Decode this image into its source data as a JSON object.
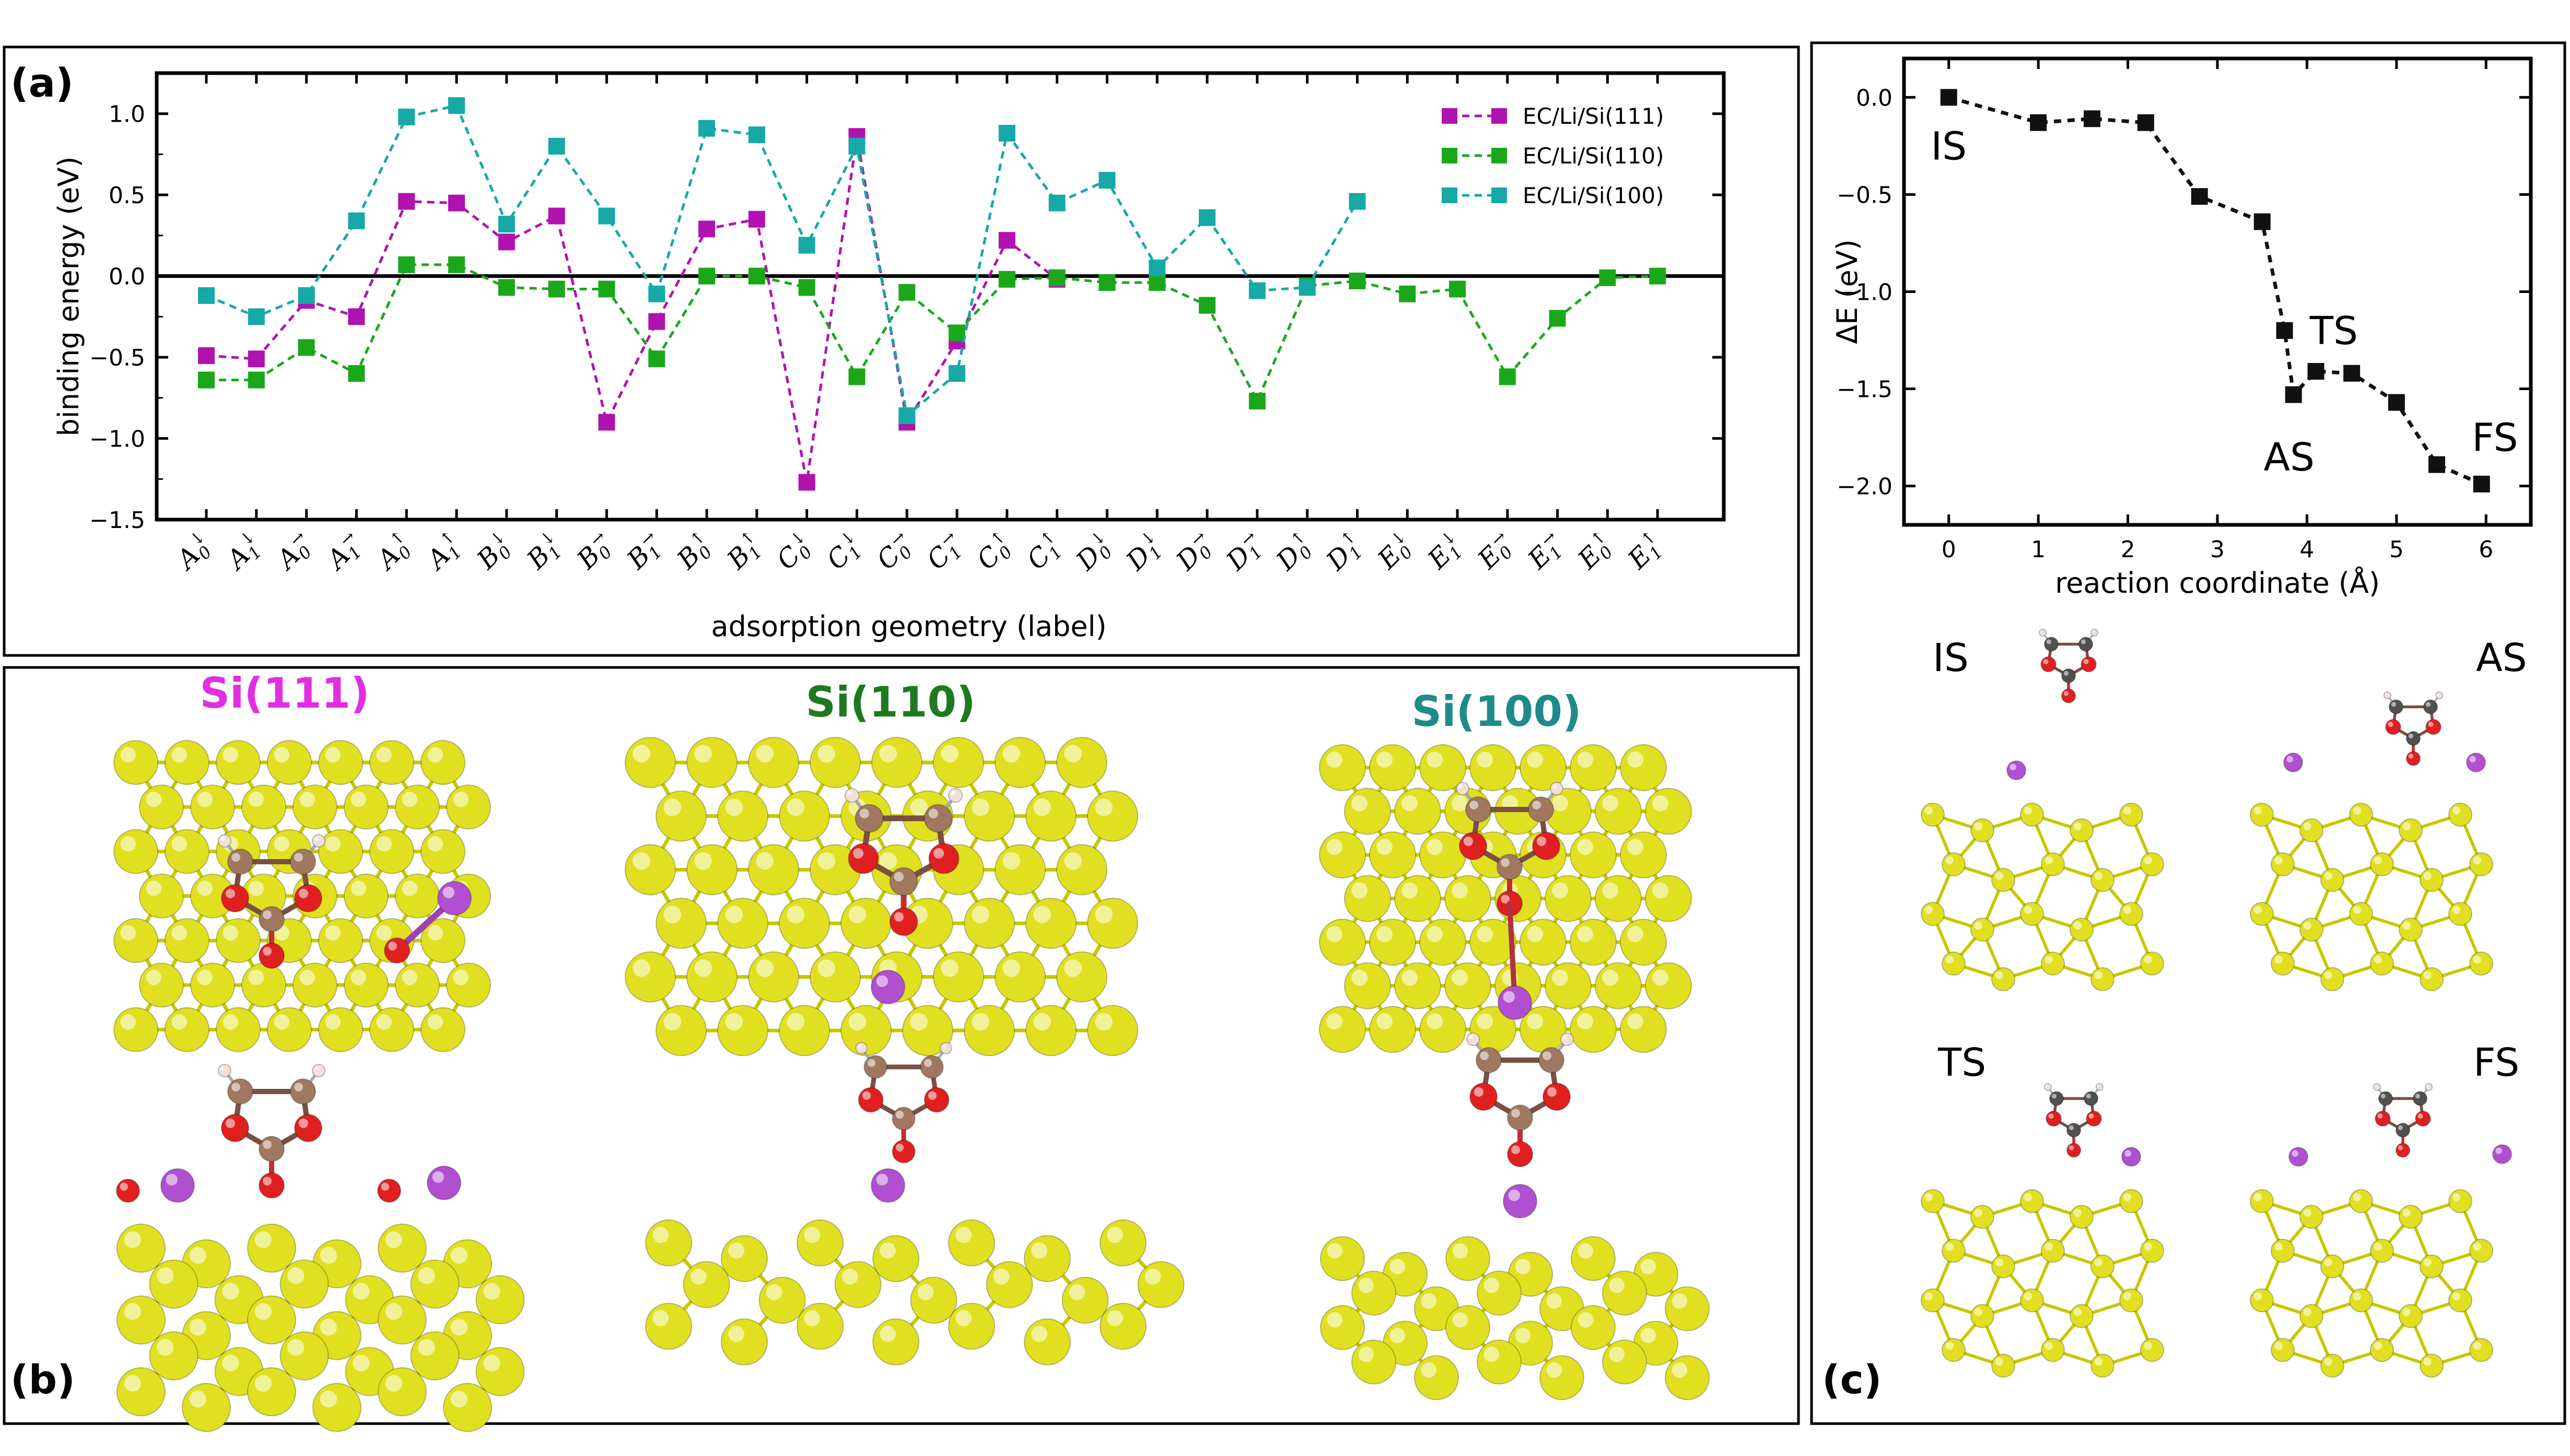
{
  "panel_labels": {
    "a": "(a)",
    "b": "(b)",
    "c": "(c)"
  },
  "surface_titles": [
    {
      "text": "Si(111)",
      "color": "#e22ee2"
    },
    {
      "text": "Si(110)",
      "color": "#1f7a1f"
    },
    {
      "text": "Si(100)",
      "color": "#1f8a8a"
    }
  ],
  "state_labels": {
    "top_left": "IS",
    "top_right": "AS",
    "bottom_left": "TS",
    "bottom_right": "FS"
  },
  "colors": {
    "si_atom": "#e0e020",
    "si_bond": "#c8c800",
    "oxygen": "#e02020",
    "carbon": "#a07860",
    "carbon_dark": "#505050",
    "hydrogen": "#f0e0d8",
    "lithium": "#b050d0"
  },
  "chart_data": [
    {
      "id": "a",
      "type": "line",
      "xlabel": "adsorption geometry (label)",
      "ylabel": "binding energy (eV)",
      "ylim": [
        -1.5,
        1.25
      ],
      "yticks": [
        "1.0",
        "0.5",
        "0.0",
        "−0.5",
        "−1.0",
        "−1.5"
      ],
      "ytick_values": [
        1.0,
        0.5,
        0.0,
        -0.5,
        -1.0,
        -1.5
      ],
      "categories": [
        {
          "base": "A",
          "sub": "0",
          "sup": "↓"
        },
        {
          "base": "A",
          "sub": "1",
          "sup": "↓"
        },
        {
          "base": "A",
          "sub": "0",
          "sup": "→"
        },
        {
          "base": "A",
          "sub": "1",
          "sup": "→"
        },
        {
          "base": "A",
          "sub": "0",
          "sup": "↑"
        },
        {
          "base": "A",
          "sub": "1",
          "sup": "↑"
        },
        {
          "base": "B",
          "sub": "0",
          "sup": "↓"
        },
        {
          "base": "B",
          "sub": "1",
          "sup": "↓"
        },
        {
          "base": "B",
          "sub": "0",
          "sup": "→"
        },
        {
          "base": "B",
          "sub": "1",
          "sup": "→"
        },
        {
          "base": "B",
          "sub": "0",
          "sup": "↑"
        },
        {
          "base": "B",
          "sub": "1",
          "sup": "↑"
        },
        {
          "base": "C",
          "sub": "0",
          "sup": "↓"
        },
        {
          "base": "C",
          "sub": "1",
          "sup": "↓"
        },
        {
          "base": "C",
          "sub": "0",
          "sup": "→"
        },
        {
          "base": "C",
          "sub": "1",
          "sup": "→"
        },
        {
          "base": "C",
          "sub": "0",
          "sup": "↑"
        },
        {
          "base": "C",
          "sub": "1",
          "sup": "↑"
        },
        {
          "base": "D",
          "sub": "0",
          "sup": "↓"
        },
        {
          "base": "D",
          "sub": "1",
          "sup": "↓"
        },
        {
          "base": "D",
          "sub": "0",
          "sup": "→"
        },
        {
          "base": "D",
          "sub": "1",
          "sup": "→"
        },
        {
          "base": "D",
          "sub": "0",
          "sup": "↑"
        },
        {
          "base": "D",
          "sub": "1",
          "sup": "↑"
        },
        {
          "base": "E",
          "sub": "0",
          "sup": "↓"
        },
        {
          "base": "E",
          "sub": "1",
          "sup": "↓"
        },
        {
          "base": "E",
          "sub": "0",
          "sup": "→"
        },
        {
          "base": "E",
          "sub": "1",
          "sup": "→"
        },
        {
          "base": "E",
          "sub": "0",
          "sup": "↑"
        },
        {
          "base": "E",
          "sub": "1",
          "sup": "↑"
        }
      ],
      "legend_position": "top-right",
      "series": [
        {
          "name": "EC/Li/Si(111)",
          "color": "#b012b0",
          "values": [
            -0.49,
            -0.51,
            -0.15,
            -0.25,
            0.46,
            0.45,
            0.21,
            0.37,
            -0.9,
            -0.28,
            0.29,
            0.35,
            -1.27,
            0.86,
            -0.9,
            -0.4,
            0.22,
            -0.02,
            null,
            null,
            null,
            null,
            null,
            null,
            null,
            null,
            null,
            null,
            null,
            null
          ]
        },
        {
          "name": "EC/Li/Si(110)",
          "color": "#1aa81a",
          "values": [
            -0.64,
            -0.64,
            -0.44,
            -0.6,
            0.07,
            0.07,
            -0.07,
            -0.08,
            -0.08,
            -0.51,
            0.0,
            0.0,
            -0.07,
            -0.62,
            -0.1,
            -0.35,
            -0.02,
            -0.01,
            -0.04,
            -0.04,
            -0.18,
            -0.77,
            -0.06,
            -0.03,
            -0.11,
            -0.08,
            -0.62,
            -0.26,
            -0.01,
            0.0
          ]
        },
        {
          "name": "EC/Li/Si(100)",
          "color": "#17a8a8",
          "values": [
            -0.12,
            -0.25,
            -0.12,
            0.34,
            0.98,
            1.05,
            0.32,
            0.8,
            0.37,
            -0.11,
            0.91,
            0.87,
            0.19,
            0.8,
            -0.86,
            -0.6,
            0.88,
            0.45,
            0.59,
            0.05,
            0.36,
            -0.09,
            -0.07,
            0.46,
            null,
            null,
            null,
            null,
            null,
            null
          ]
        }
      ]
    },
    {
      "id": "c",
      "type": "line",
      "xlabel": "reaction coordinate (Å)",
      "ylabel": "ΔE (eV)",
      "xlim": [
        -0.5,
        6.5
      ],
      "ylim": [
        -2.2,
        0.2
      ],
      "xticks": [
        "0",
        "1",
        "2",
        "3",
        "4",
        "5",
        "6"
      ],
      "xtick_values": [
        0,
        1,
        2,
        3,
        4,
        5,
        6
      ],
      "yticks": [
        "0.0",
        "−0.5",
        "−1.0",
        "−1.5",
        "−2.0"
      ],
      "ytick_values": [
        0.0,
        -0.5,
        -1.0,
        -1.5,
        -2.0
      ],
      "series": [
        {
          "name": "reaction path",
          "color": "#111111",
          "x": [
            0,
            1.0,
            1.6,
            2.2,
            2.8,
            3.5,
            3.75,
            3.85,
            4.1,
            4.5,
            5.0,
            5.45,
            5.95
          ],
          "y": [
            0.0,
            -0.13,
            -0.11,
            -0.13,
            -0.51,
            -0.64,
            -1.2,
            -1.53,
            -1.41,
            -1.42,
            -1.57,
            -1.89,
            -1.99
          ]
        }
      ],
      "annotations": [
        {
          "text": "IS",
          "x": 0.0,
          "y": -0.25
        },
        {
          "text": "TS",
          "x": 4.3,
          "y": -1.2
        },
        {
          "text": "AS",
          "x": 3.8,
          "y": -1.85
        },
        {
          "text": "FS",
          "x": 6.1,
          "y": -1.75
        }
      ]
    }
  ]
}
